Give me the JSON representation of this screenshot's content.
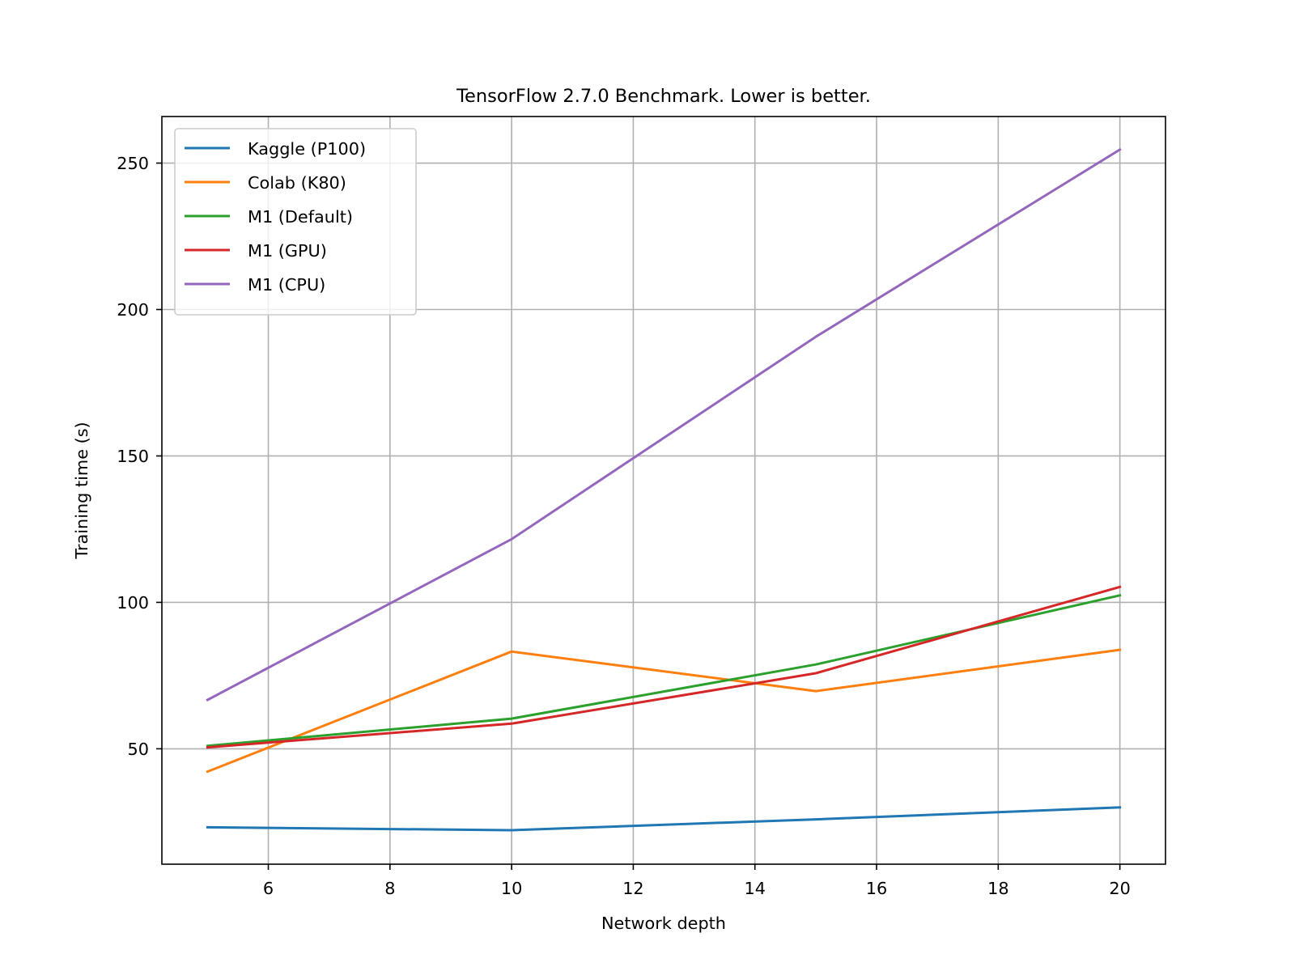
{
  "chart_data": {
    "type": "line",
    "title": "TensorFlow 2.7.0 Benchmark. Lower is better.",
    "xlabel": "Network depth",
    "ylabel": "Training time (s)",
    "xlim": [
      4.25,
      20.75
    ],
    "ylim": [
      10.6,
      265.9
    ],
    "x_ticks": [
      6,
      8,
      10,
      12,
      14,
      16,
      18,
      20
    ],
    "y_ticks": [
      50,
      100,
      150,
      200,
      250
    ],
    "grid": true,
    "legend_position": "top-left",
    "x": [
      5,
      10,
      15,
      20
    ],
    "series": [
      {
        "name": "Kaggle (P100)",
        "color": "#1f77b4",
        "values": [
          23.2,
          22.2,
          25.9,
          30.0
        ]
      },
      {
        "name": "Colab (K80)",
        "color": "#ff7f0e",
        "values": [
          42.2,
          83.2,
          69.7,
          83.8
        ]
      },
      {
        "name": "M1 (Default)",
        "color": "#2ca02c",
        "values": [
          51.0,
          60.3,
          78.8,
          102.4
        ]
      },
      {
        "name": "M1 (GPU)",
        "color": "#d62728",
        "values": [
          50.5,
          58.6,
          75.8,
          105.3
        ]
      },
      {
        "name": "M1 (CPU)",
        "color": "#9467bd",
        "values": [
          66.7,
          121.6,
          190.7,
          254.6
        ]
      }
    ]
  }
}
